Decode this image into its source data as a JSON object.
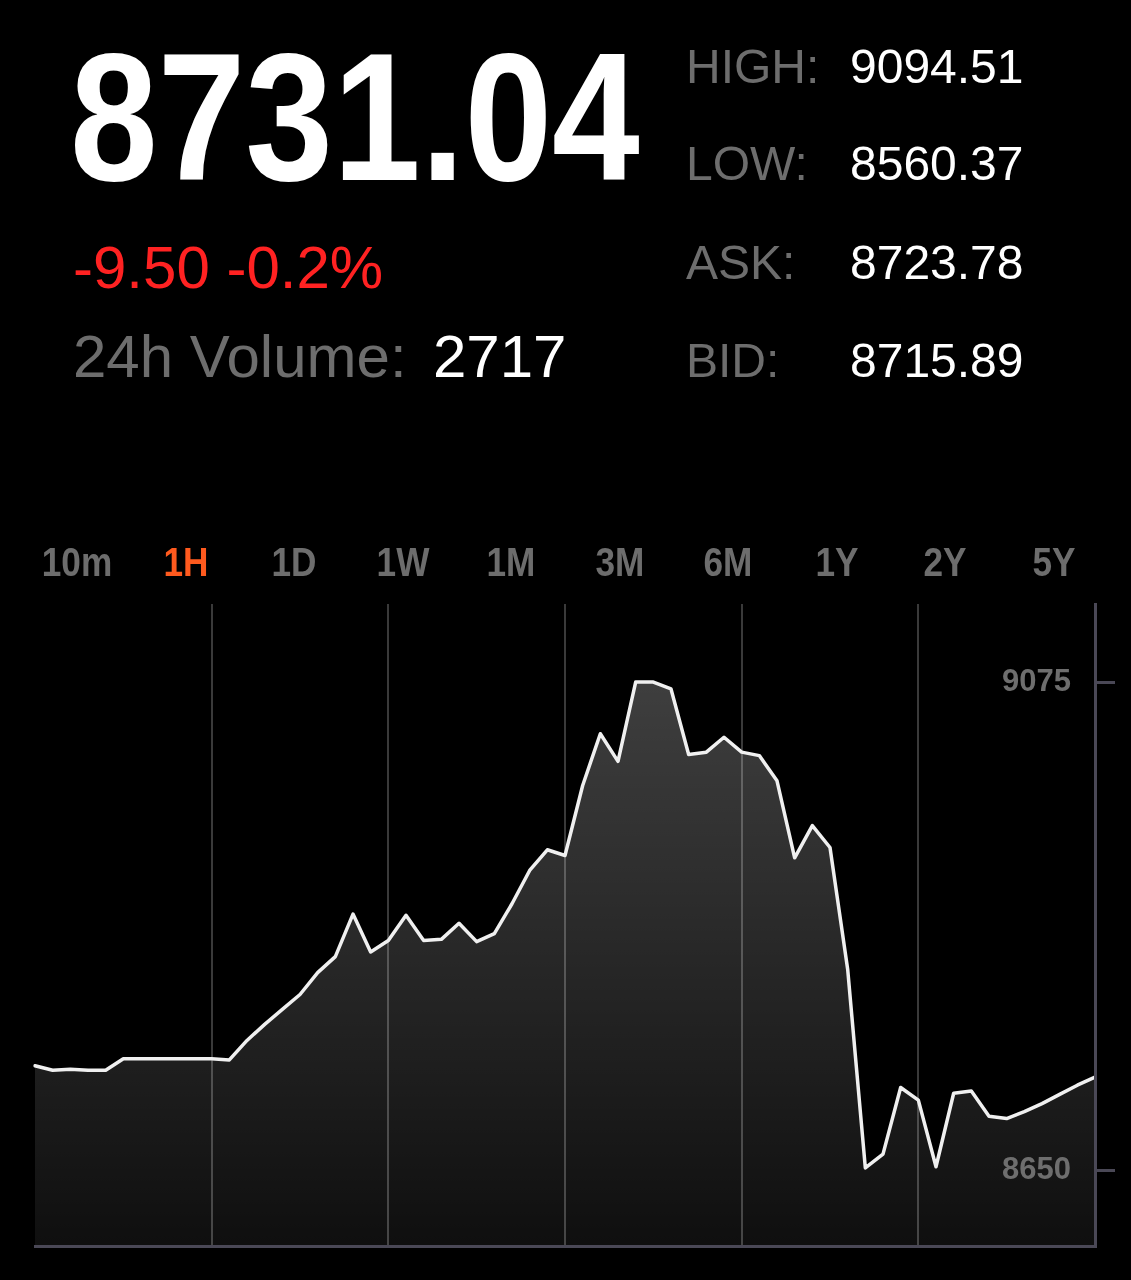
{
  "chart_data": {
    "type": "area",
    "title": "8731.04",
    "subtitle": "-9.50 -0.2%",
    "annotations": [
      "24h Volume:",
      "2717",
      "HIGH:",
      "9094.51",
      "LOW:",
      "8560.37",
      "ASK:",
      "8723.78",
      "BID:",
      "8715.89",
      "10m",
      "1H",
      "1D",
      "1W",
      "1M",
      "3M",
      "6M",
      "1Y",
      "2Y",
      "5Y"
    ],
    "categories": [
      null,
      null,
      null,
      null,
      null,
      null,
      null,
      null,
      null,
      null,
      null,
      null,
      null,
      null,
      null,
      null,
      null,
      null,
      null,
      null,
      null,
      null,
      null,
      null,
      null,
      null,
      null,
      null,
      null,
      null,
      null,
      null,
      null,
      null,
      null,
      null,
      null,
      null,
      null,
      null,
      null,
      null,
      null,
      null,
      null,
      null,
      null,
      null,
      null,
      null,
      null,
      null,
      null,
      null,
      null,
      null,
      null,
      null,
      null,
      null,
      null
    ],
    "values": [
      8741,
      8737,
      8738,
      8737,
      8737,
      8747,
      8747,
      8747,
      8747,
      8747,
      8747,
      8746,
      8763,
      8777,
      8790,
      8803,
      8822,
      8836,
      8873,
      8840,
      8850,
      8872,
      8850,
      8851,
      8865,
      8849,
      8856,
      8882,
      8911,
      8929,
      8924,
      8985,
      9030,
      9006,
      9075,
      9075,
      9069,
      9012,
      9014,
      9027,
      9014,
      9011,
      8989,
      8922,
      8950,
      8931,
      8825,
      8652,
      8664,
      8722,
      8711,
      8653,
      8717,
      8719,
      8697,
      8695,
      8701,
      8708,
      8716,
      8724,
      8731
    ],
    "color": "#f0f0f0",
    "ylim": [
      8584,
      9143
    ],
    "yticks": [
      8650,
      9075
    ],
    "grid": "x",
    "tick_labels": "y"
  }
}
